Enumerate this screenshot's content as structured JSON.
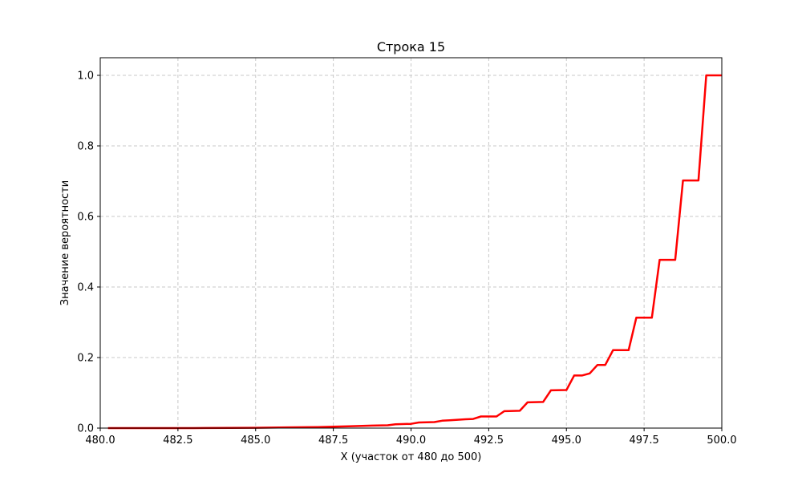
{
  "chart_data": {
    "type": "line",
    "title": "Строка 15",
    "xlabel": "X (участок от 480 до 500)",
    "ylabel": "Значение вероятности",
    "xlim": [
      480.0,
      500.0
    ],
    "ylim": [
      0.0,
      1.05
    ],
    "grid": true,
    "line_color": "#ff0000",
    "x_ticks": [
      480.0,
      482.5,
      485.0,
      487.5,
      490.0,
      492.5,
      495.0,
      497.5,
      500.0
    ],
    "x_tick_labels": [
      "480.0",
      "482.5",
      "485.0",
      "487.5",
      "490.0",
      "492.5",
      "495.0",
      "497.5",
      "500.0"
    ],
    "y_ticks": [
      0.0,
      0.2,
      0.4,
      0.6,
      0.8,
      1.0
    ],
    "y_tick_labels": [
      "0.0",
      "0.2",
      "0.4",
      "0.6",
      "0.8",
      "1.0"
    ],
    "series": [
      {
        "x": [
          480.25,
          483.0,
          485.0,
          486.0,
          487.0,
          487.5,
          488.0,
          488.75,
          489.25,
          489.5,
          490.0,
          490.25,
          490.75,
          491.0,
          491.25,
          491.75,
          492.0,
          492.25,
          492.75,
          493.0,
          493.5,
          493.75,
          494.25,
          494.5,
          495.0,
          495.25,
          495.5,
          495.75,
          496.0,
          496.25,
          496.5,
          497.0,
          497.25,
          497.75,
          498.0,
          498.5,
          498.75,
          499.25,
          499.5,
          500.0
        ],
        "values": [
          0.0,
          0.0,
          0.001,
          0.002,
          0.003,
          0.004,
          0.005,
          0.007,
          0.008,
          0.011,
          0.012,
          0.016,
          0.017,
          0.021,
          0.022,
          0.025,
          0.026,
          0.033,
          0.033,
          0.048,
          0.049,
          0.073,
          0.074,
          0.107,
          0.108,
          0.149,
          0.149,
          0.155,
          0.179,
          0.179,
          0.221,
          0.221,
          0.313,
          0.313,
          0.477,
          0.477,
          0.702,
          0.702,
          1.0,
          1.0
        ]
      }
    ]
  }
}
